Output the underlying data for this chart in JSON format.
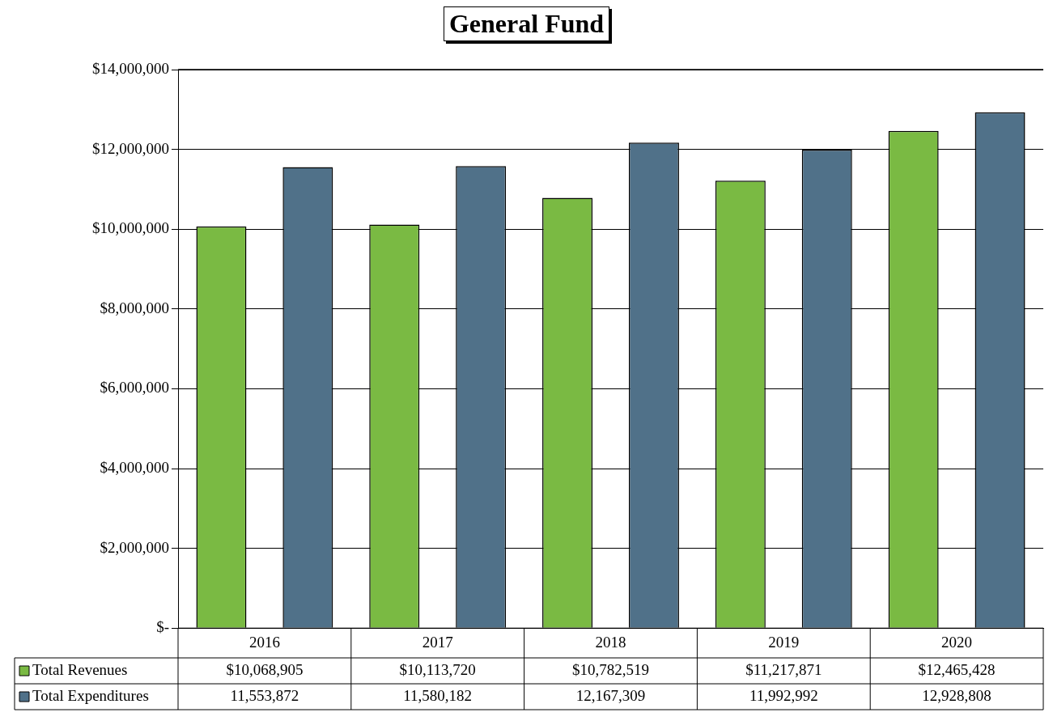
{
  "chart_data": {
    "type": "bar",
    "title": "General Fund",
    "categories": [
      "2016",
      "2017",
      "2018",
      "2019",
      "2020"
    ],
    "series": [
      {
        "name": "Total Revenues",
        "color": "#7aba43",
        "values": [
          10068905,
          10113720,
          10782519,
          11217871,
          12465428
        ],
        "value_labels": [
          "$10,068,905",
          "$10,113,720",
          "$10,782,519",
          "$11,217,871",
          "$12,465,428"
        ]
      },
      {
        "name": "Total Expenditures",
        "color": "#507189",
        "values": [
          11553872,
          11580182,
          12167309,
          11992992,
          12928808
        ],
        "value_labels": [
          "11,553,872",
          "11,580,182",
          "12,167,309",
          "11,992,992",
          "12,928,808"
        ]
      }
    ],
    "ylim": [
      0,
      14000000
    ],
    "yticks": [
      {
        "value": 0,
        "label": "$-"
      },
      {
        "value": 2000000,
        "label": "$2,000,000"
      },
      {
        "value": 4000000,
        "label": "$4,000,000"
      },
      {
        "value": 6000000,
        "label": "$6,000,000"
      },
      {
        "value": 8000000,
        "label": "$8,000,000"
      },
      {
        "value": 10000000,
        "label": "$10,000,000"
      },
      {
        "value": 12000000,
        "label": "$12,000,000"
      },
      {
        "value": 14000000,
        "label": "$14,000,000"
      }
    ],
    "grid": "y",
    "legend": "bottom"
  }
}
